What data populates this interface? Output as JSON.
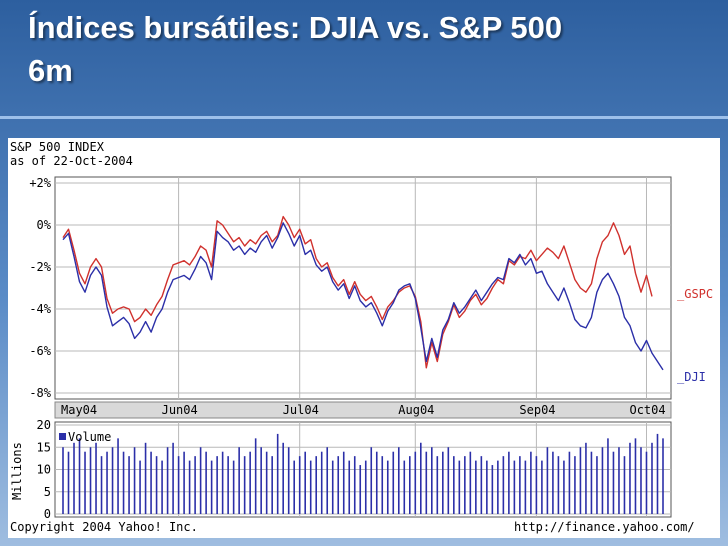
{
  "slide": {
    "title_line1": "Índices bursátiles: DJIA vs. S&P 500",
    "title_line2": "6m"
  },
  "chart_data": {
    "type": "line",
    "title": "S&P 500 INDEX",
    "subtitle": "as of 22-Oct-2004",
    "y_ticks": [
      "+2%",
      "0%",
      "-2%",
      "-4%",
      "-6%",
      "-8%"
    ],
    "ylim": [
      -8,
      2
    ],
    "x_ticks": [
      "May04",
      "Jun04",
      "Jul04",
      "Aug04",
      "Sep04",
      "Oct04"
    ],
    "grid": true,
    "colors": {
      "gspc": "#d0312d",
      "dji": "#2b2fa8",
      "volume": "#2b2fa8",
      "grid": "#b8b8b8"
    },
    "series": [
      {
        "name": "_GSPC",
        "points": [
          [
            0,
            -0.6
          ],
          [
            1,
            -0.2
          ],
          [
            2,
            -1.2
          ],
          [
            3,
            -2.3
          ],
          [
            4,
            -2.8
          ],
          [
            5,
            -2.0
          ],
          [
            6,
            -1.6
          ],
          [
            7,
            -2.0
          ],
          [
            8,
            -3.5
          ],
          [
            9,
            -4.2
          ],
          [
            10,
            -4.0
          ],
          [
            11,
            -3.9
          ],
          [
            12,
            -4.0
          ],
          [
            13,
            -4.6
          ],
          [
            14,
            -4.4
          ],
          [
            15,
            -4.0
          ],
          [
            16,
            -4.3
          ],
          [
            17,
            -3.8
          ],
          [
            18,
            -3.4
          ],
          [
            19,
            -2.6
          ],
          [
            20,
            -1.9
          ],
          [
            21,
            -1.8
          ],
          [
            22,
            -1.7
          ],
          [
            23,
            -1.9
          ],
          [
            24,
            -1.5
          ],
          [
            25,
            -1.0
          ],
          [
            26,
            -1.2
          ],
          [
            27,
            -2.0
          ],
          [
            28,
            0.2
          ],
          [
            29,
            0.0
          ],
          [
            30,
            -0.4
          ],
          [
            31,
            -0.8
          ],
          [
            32,
            -0.6
          ],
          [
            33,
            -1.0
          ],
          [
            34,
            -0.7
          ],
          [
            35,
            -0.9
          ],
          [
            36,
            -0.5
          ],
          [
            37,
            -0.3
          ],
          [
            38,
            -0.8
          ],
          [
            39,
            -0.5
          ],
          [
            40,
            0.4
          ],
          [
            41,
            0.0
          ],
          [
            42,
            -0.6
          ],
          [
            43,
            -0.2
          ],
          [
            44,
            -0.9
          ],
          [
            45,
            -0.7
          ],
          [
            46,
            -1.6
          ],
          [
            47,
            -2.0
          ],
          [
            48,
            -1.8
          ],
          [
            49,
            -2.5
          ],
          [
            50,
            -2.9
          ],
          [
            51,
            -2.6
          ],
          [
            52,
            -3.3
          ],
          [
            53,
            -2.7
          ],
          [
            54,
            -3.3
          ],
          [
            55,
            -3.6
          ],
          [
            56,
            -3.4
          ],
          [
            57,
            -3.9
          ],
          [
            58,
            -4.5
          ],
          [
            59,
            -3.9
          ],
          [
            60,
            -3.6
          ],
          [
            61,
            -3.2
          ],
          [
            62,
            -3.0
          ],
          [
            63,
            -2.9
          ],
          [
            64,
            -3.4
          ],
          [
            65,
            -4.6
          ],
          [
            66,
            -6.8
          ],
          [
            67,
            -5.6
          ],
          [
            68,
            -6.5
          ],
          [
            69,
            -5.2
          ],
          [
            70,
            -4.6
          ],
          [
            71,
            -3.8
          ],
          [
            72,
            -4.4
          ],
          [
            73,
            -4.1
          ],
          [
            74,
            -3.6
          ],
          [
            75,
            -3.3
          ],
          [
            76,
            -3.8
          ],
          [
            77,
            -3.5
          ],
          [
            78,
            -3.0
          ],
          [
            79,
            -2.6
          ],
          [
            80,
            -2.8
          ],
          [
            81,
            -1.7
          ],
          [
            82,
            -1.9
          ],
          [
            83,
            -1.5
          ],
          [
            84,
            -1.6
          ],
          [
            85,
            -1.2
          ],
          [
            86,
            -1.7
          ],
          [
            87,
            -1.4
          ],
          [
            88,
            -1.1
          ],
          [
            89,
            -1.3
          ],
          [
            90,
            -1.6
          ],
          [
            91,
            -1.0
          ],
          [
            92,
            -1.8
          ],
          [
            93,
            -2.6
          ],
          [
            94,
            -3.0
          ],
          [
            95,
            -3.2
          ],
          [
            96,
            -2.8
          ],
          [
            97,
            -1.6
          ],
          [
            98,
            -0.8
          ],
          [
            99,
            -0.5
          ],
          [
            100,
            0.1
          ],
          [
            101,
            -0.5
          ],
          [
            102,
            -1.4
          ],
          [
            103,
            -1.0
          ],
          [
            104,
            -2.3
          ],
          [
            105,
            -3.2
          ],
          [
            106,
            -2.4
          ],
          [
            107,
            -3.4
          ]
        ]
      },
      {
        "name": "_DJI",
        "points": [
          [
            0,
            -0.7
          ],
          [
            1,
            -0.4
          ],
          [
            2,
            -1.5
          ],
          [
            3,
            -2.7
          ],
          [
            4,
            -3.2
          ],
          [
            5,
            -2.4
          ],
          [
            6,
            -2.0
          ],
          [
            7,
            -2.4
          ],
          [
            8,
            -3.9
          ],
          [
            9,
            -4.8
          ],
          [
            10,
            -4.6
          ],
          [
            11,
            -4.4
          ],
          [
            12,
            -4.7
          ],
          [
            13,
            -5.4
          ],
          [
            14,
            -5.1
          ],
          [
            15,
            -4.6
          ],
          [
            16,
            -5.1
          ],
          [
            17,
            -4.4
          ],
          [
            18,
            -4.0
          ],
          [
            19,
            -3.2
          ],
          [
            20,
            -2.6
          ],
          [
            21,
            -2.5
          ],
          [
            22,
            -2.4
          ],
          [
            23,
            -2.6
          ],
          [
            24,
            -2.1
          ],
          [
            25,
            -1.5
          ],
          [
            26,
            -1.8
          ],
          [
            27,
            -2.6
          ],
          [
            28,
            -0.3
          ],
          [
            29,
            -0.6
          ],
          [
            30,
            -0.8
          ],
          [
            31,
            -1.2
          ],
          [
            32,
            -1.0
          ],
          [
            33,
            -1.4
          ],
          [
            34,
            -1.1
          ],
          [
            35,
            -1.3
          ],
          [
            36,
            -0.8
          ],
          [
            37,
            -0.5
          ],
          [
            38,
            -1.1
          ],
          [
            39,
            -0.6
          ],
          [
            40,
            0.1
          ],
          [
            41,
            -0.4
          ],
          [
            42,
            -1.0
          ],
          [
            43,
            -0.5
          ],
          [
            44,
            -1.4
          ],
          [
            45,
            -1.2
          ],
          [
            46,
            -1.9
          ],
          [
            47,
            -2.2
          ],
          [
            48,
            -2.0
          ],
          [
            49,
            -2.7
          ],
          [
            50,
            -3.1
          ],
          [
            51,
            -2.8
          ],
          [
            52,
            -3.5
          ],
          [
            53,
            -2.9
          ],
          [
            54,
            -3.6
          ],
          [
            55,
            -3.9
          ],
          [
            56,
            -3.7
          ],
          [
            57,
            -4.2
          ],
          [
            58,
            -4.8
          ],
          [
            59,
            -4.1
          ],
          [
            60,
            -3.7
          ],
          [
            61,
            -3.1
          ],
          [
            62,
            -2.9
          ],
          [
            63,
            -2.8
          ],
          [
            64,
            -3.5
          ],
          [
            65,
            -4.9
          ],
          [
            66,
            -6.5
          ],
          [
            67,
            -5.4
          ],
          [
            68,
            -6.3
          ],
          [
            69,
            -5.0
          ],
          [
            70,
            -4.5
          ],
          [
            71,
            -3.7
          ],
          [
            72,
            -4.2
          ],
          [
            73,
            -3.9
          ],
          [
            74,
            -3.5
          ],
          [
            75,
            -3.1
          ],
          [
            76,
            -3.6
          ],
          [
            77,
            -3.2
          ],
          [
            78,
            -2.8
          ],
          [
            79,
            -2.5
          ],
          [
            80,
            -2.6
          ],
          [
            81,
            -1.6
          ],
          [
            82,
            -1.8
          ],
          [
            83,
            -1.4
          ],
          [
            84,
            -1.9
          ],
          [
            85,
            -1.6
          ],
          [
            86,
            -2.3
          ],
          [
            87,
            -2.2
          ],
          [
            88,
            -2.8
          ],
          [
            89,
            -3.2
          ],
          [
            90,
            -3.6
          ],
          [
            91,
            -3.0
          ],
          [
            92,
            -3.7
          ],
          [
            93,
            -4.5
          ],
          [
            94,
            -4.8
          ],
          [
            95,
            -4.9
          ],
          [
            96,
            -4.4
          ],
          [
            97,
            -3.2
          ],
          [
            98,
            -2.6
          ],
          [
            99,
            -2.3
          ],
          [
            100,
            -2.8
          ],
          [
            101,
            -3.4
          ],
          [
            102,
            -4.4
          ],
          [
            103,
            -4.8
          ],
          [
            104,
            -5.6
          ],
          [
            105,
            -6.0
          ],
          [
            106,
            -5.5
          ],
          [
            107,
            -6.1
          ],
          [
            108,
            -6.5
          ],
          [
            109,
            -6.9
          ]
        ]
      }
    ],
    "volume": {
      "ylabel": "Millions",
      "legend": "Volume",
      "y_ticks": [
        "20",
        "15",
        "10",
        "5",
        "0"
      ],
      "ylim": [
        0,
        20
      ],
      "values": [
        15,
        14,
        16,
        17,
        14,
        15,
        16,
        13,
        14,
        15,
        17,
        14,
        13,
        15,
        12,
        16,
        14,
        13,
        12,
        15,
        16,
        13,
        14,
        12,
        13,
        15,
        14,
        12,
        13,
        14,
        13,
        12,
        15,
        13,
        14,
        17,
        15,
        14,
        13,
        18,
        16,
        15,
        12,
        13,
        14,
        12,
        13,
        14,
        15,
        12,
        13,
        14,
        12,
        13,
        11,
        12,
        15,
        14,
        13,
        12,
        14,
        15,
        12,
        13,
        14,
        16,
        14,
        15,
        13,
        14,
        15,
        13,
        12,
        13,
        14,
        12,
        13,
        12,
        11,
        12,
        13,
        14,
        12,
        13,
        12,
        14,
        13,
        12,
        15,
        14,
        13,
        12,
        14,
        13,
        15,
        16,
        14,
        13,
        15,
        17,
        14,
        15,
        13,
        16,
        17,
        15,
        14,
        16,
        18,
        17
      ]
    },
    "footer_left": "Copyright 2004 Yahoo! Inc.",
    "footer_right": "http://finance.yahoo.com/"
  }
}
